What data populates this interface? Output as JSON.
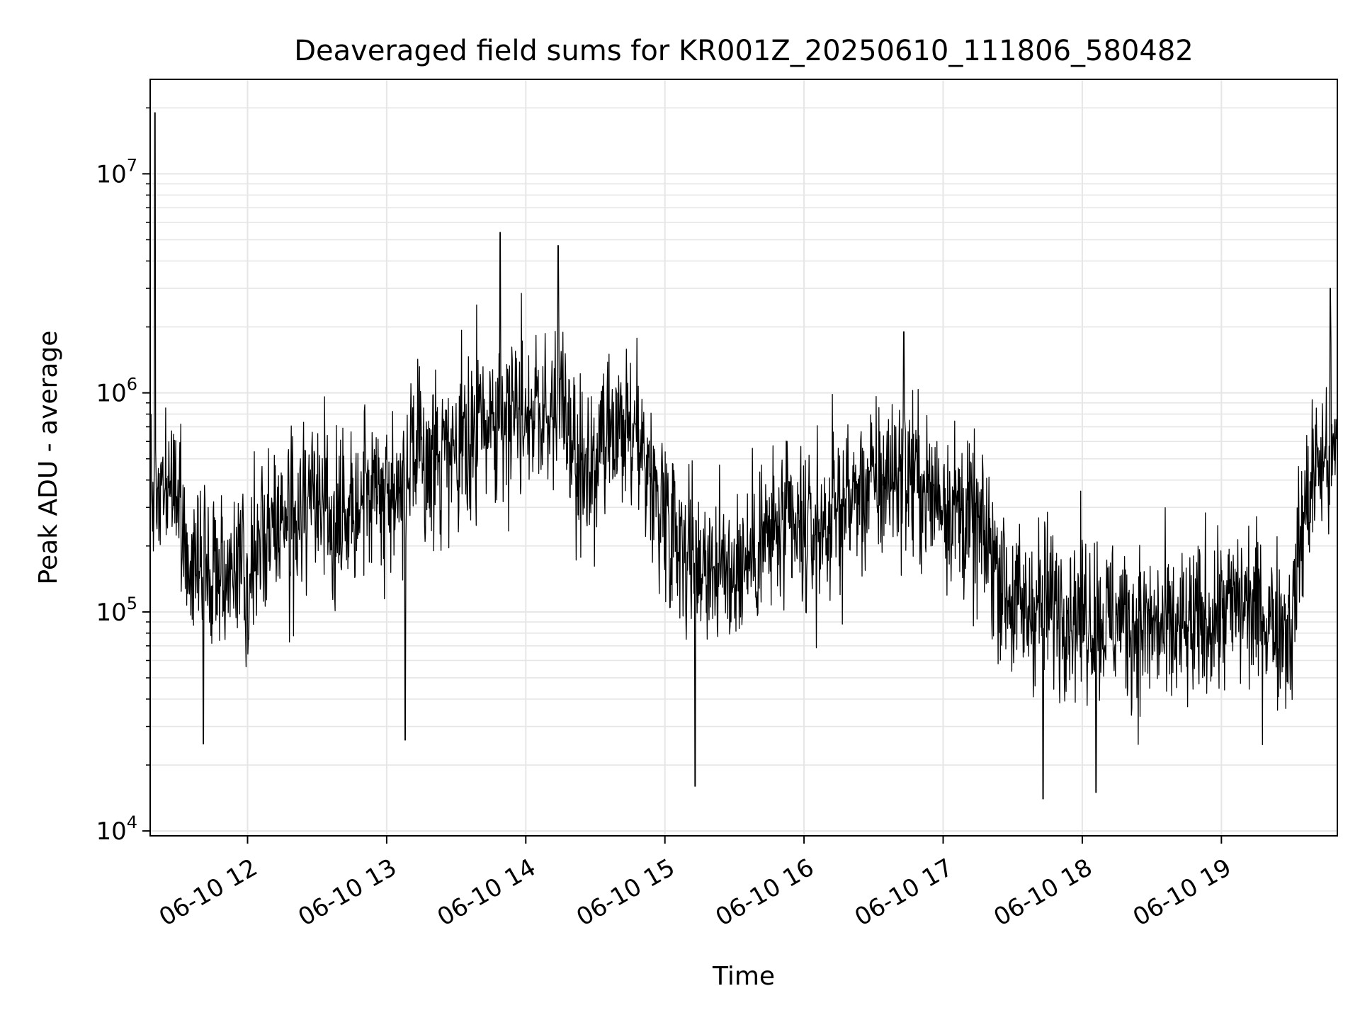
{
  "chart_data": {
    "type": "line",
    "title": "Deaveraged field sums for KR001Z_20250610_111806_580482",
    "xlabel": "Time",
    "ylabel": "Peak ADU - average",
    "y_scale": "log",
    "ylim": [
      9500,
      27000000
    ],
    "xlim": [
      "06-10 11:18",
      "06-10 19:50"
    ],
    "grid": true,
    "grid_color": "#e6e6e6",
    "line_color": "#000000",
    "x_ticks": [
      {
        "value": "06-10 12:00",
        "label": "06-10 12"
      },
      {
        "value": "06-10 13:00",
        "label": "06-10 13"
      },
      {
        "value": "06-10 14:00",
        "label": "06-10 14"
      },
      {
        "value": "06-10 15:00",
        "label": "06-10 15"
      },
      {
        "value": "06-10 16:00",
        "label": "06-10 16"
      },
      {
        "value": "06-10 17:00",
        "label": "06-10 17"
      },
      {
        "value": "06-10 18:00",
        "label": "06-10 18"
      },
      {
        "value": "06-10 19:00",
        "label": "06-10 19"
      }
    ],
    "y_ticks": [
      {
        "value": 10000,
        "base": "10",
        "exp": "4"
      },
      {
        "value": 100000,
        "base": "10",
        "exp": "5"
      },
      {
        "value": 1000000,
        "base": "10",
        "exp": "6"
      },
      {
        "value": 10000000,
        "base": "10",
        "exp": "7"
      }
    ],
    "series": [
      {
        "x": [
          "06-10 11:18",
          "06-10 11:25",
          "06-10 11:30",
          "06-10 11:35",
          "06-10 11:40",
          "06-10 11:45",
          "06-10 11:50",
          "06-10 11:55",
          "06-10 12:00",
          "06-10 12:05",
          "06-10 12:10",
          "06-10 12:15",
          "06-10 12:20",
          "06-10 12:25",
          "06-10 12:30",
          "06-10 12:35",
          "06-10 12:40",
          "06-10 12:45",
          "06-10 12:50",
          "06-10 12:55",
          "06-10 13:00",
          "06-10 13:05",
          "06-10 13:10",
          "06-10 13:15",
          "06-10 13:20",
          "06-10 13:25",
          "06-10 13:30",
          "06-10 13:35",
          "06-10 13:40",
          "06-10 13:45",
          "06-10 13:50",
          "06-10 13:55",
          "06-10 14:00",
          "06-10 14:05",
          "06-10 14:10",
          "06-10 14:15",
          "06-10 14:20",
          "06-10 14:25",
          "06-10 14:30",
          "06-10 14:35",
          "06-10 14:40",
          "06-10 14:45",
          "06-10 14:50",
          "06-10 14:55",
          "06-10 15:00",
          "06-10 15:05",
          "06-10 15:10",
          "06-10 15:15",
          "06-10 15:20",
          "06-10 15:25",
          "06-10 15:30",
          "06-10 15:35",
          "06-10 15:40",
          "06-10 15:45",
          "06-10 15:50",
          "06-10 15:55",
          "06-10 16:00",
          "06-10 16:05",
          "06-10 16:10",
          "06-10 16:15",
          "06-10 16:20",
          "06-10 16:25",
          "06-10 16:30",
          "06-10 16:35",
          "06-10 16:40",
          "06-10 16:45",
          "06-10 16:50",
          "06-10 16:55",
          "06-10 17:00",
          "06-10 17:05",
          "06-10 17:10",
          "06-10 17:15",
          "06-10 17:20",
          "06-10 17:25",
          "06-10 17:30",
          "06-10 17:35",
          "06-10 17:40",
          "06-10 17:45",
          "06-10 17:50",
          "06-10 17:55",
          "06-10 18:00",
          "06-10 18:05",
          "06-10 18:10",
          "06-10 18:15",
          "06-10 18:20",
          "06-10 18:25",
          "06-10 18:30",
          "06-10 18:35",
          "06-10 18:40",
          "06-10 18:45",
          "06-10 18:50",
          "06-10 18:55",
          "06-10 19:00",
          "06-10 19:05",
          "06-10 19:10",
          "06-10 19:15",
          "06-10 19:20",
          "06-10 19:25",
          "06-10 19:30",
          "06-10 19:35",
          "06-10 19:40",
          "06-10 19:45",
          "06-10 19:50"
        ],
        "y": [
          300000,
          400000,
          350000,
          150000,
          200000,
          130000,
          150000,
          180000,
          140000,
          200000,
          260000,
          280000,
          240000,
          300000,
          350000,
          300000,
          280000,
          320000,
          400000,
          380000,
          350000,
          400000,
          450000,
          480000,
          500000,
          520000,
          480000,
          600000,
          700000,
          750000,
          800000,
          900000,
          900000,
          800000,
          750000,
          1000000,
          500000,
          400000,
          450000,
          550000,
          600000,
          650000,
          600000,
          350000,
          300000,
          250000,
          200000,
          180000,
          170000,
          150000,
          160000,
          170000,
          200000,
          220000,
          230000,
          230000,
          220000,
          230000,
          260000,
          300000,
          330000,
          350000,
          380000,
          400000,
          450000,
          430000,
          380000,
          330000,
          350000,
          300000,
          270000,
          230000,
          200000,
          150000,
          110000,
          100000,
          110000,
          110000,
          110000,
          105000,
          100000,
          95000,
          90000,
          95000,
          90000,
          85000,
          85000,
          80000,
          80000,
          80000,
          85000,
          95000,
          100000,
          105000,
          110000,
          100000,
          95000,
          90000,
          85000,
          250000,
          450000,
          500000,
          500000
        ],
        "spikes": [
          {
            "x": "06-10 11:20",
            "y": 19000000
          },
          {
            "x": "06-10 13:49",
            "y": 5400000
          },
          {
            "x": "06-10 14:14",
            "y": 4700000
          },
          {
            "x": "06-10 16:43",
            "y": 1900000
          },
          {
            "x": "06-10 19:47",
            "y": 3000000
          },
          {
            "x": "06-10 15:13",
            "y": 16000
          },
          {
            "x": "06-10 17:43",
            "y": 14000
          },
          {
            "x": "06-10 18:06",
            "y": 15000
          },
          {
            "x": "06-10 13:08",
            "y": 26000
          },
          {
            "x": "06-10 11:41",
            "y": 25000
          }
        ]
      }
    ]
  }
}
